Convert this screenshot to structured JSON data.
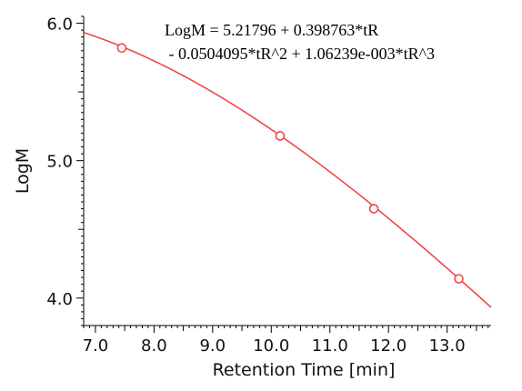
{
  "chart_data": {
    "type": "line",
    "xlabel": "Retention Time [min]",
    "ylabel": "LogM",
    "xlim": [
      6.8,
      13.75
    ],
    "ylim": [
      3.8,
      6.05
    ],
    "x_ticks": [
      7.0,
      8.0,
      9.0,
      10.0,
      11.0,
      12.0,
      13.0
    ],
    "x_tick_labels": [
      "7.0",
      "8.0",
      "9.0",
      "10.0",
      "11.0",
      "12.0",
      "13.0"
    ],
    "y_ticks": [
      4.0,
      5.0,
      6.0
    ],
    "y_tick_labels": [
      "4.0",
      "5.0",
      "6.0"
    ],
    "equation_lines": [
      "LogM = 5.21796 + 0.398763*tR",
      " - 0.0504095*tR^2 + 1.06239e-003*tR^3"
    ],
    "fit_coefficients": [
      5.21796,
      0.398763,
      -0.0504095,
      0.00106239
    ],
    "fit_x_range": [
      6.8,
      13.75
    ],
    "series": [
      {
        "type": "scatter",
        "x": [
          7.45,
          10.15,
          11.75,
          13.2
        ],
        "y": [
          5.82,
          5.18,
          4.65,
          4.14
        ]
      }
    ],
    "line_color": "#f04848",
    "grid": false,
    "legend": "none"
  }
}
